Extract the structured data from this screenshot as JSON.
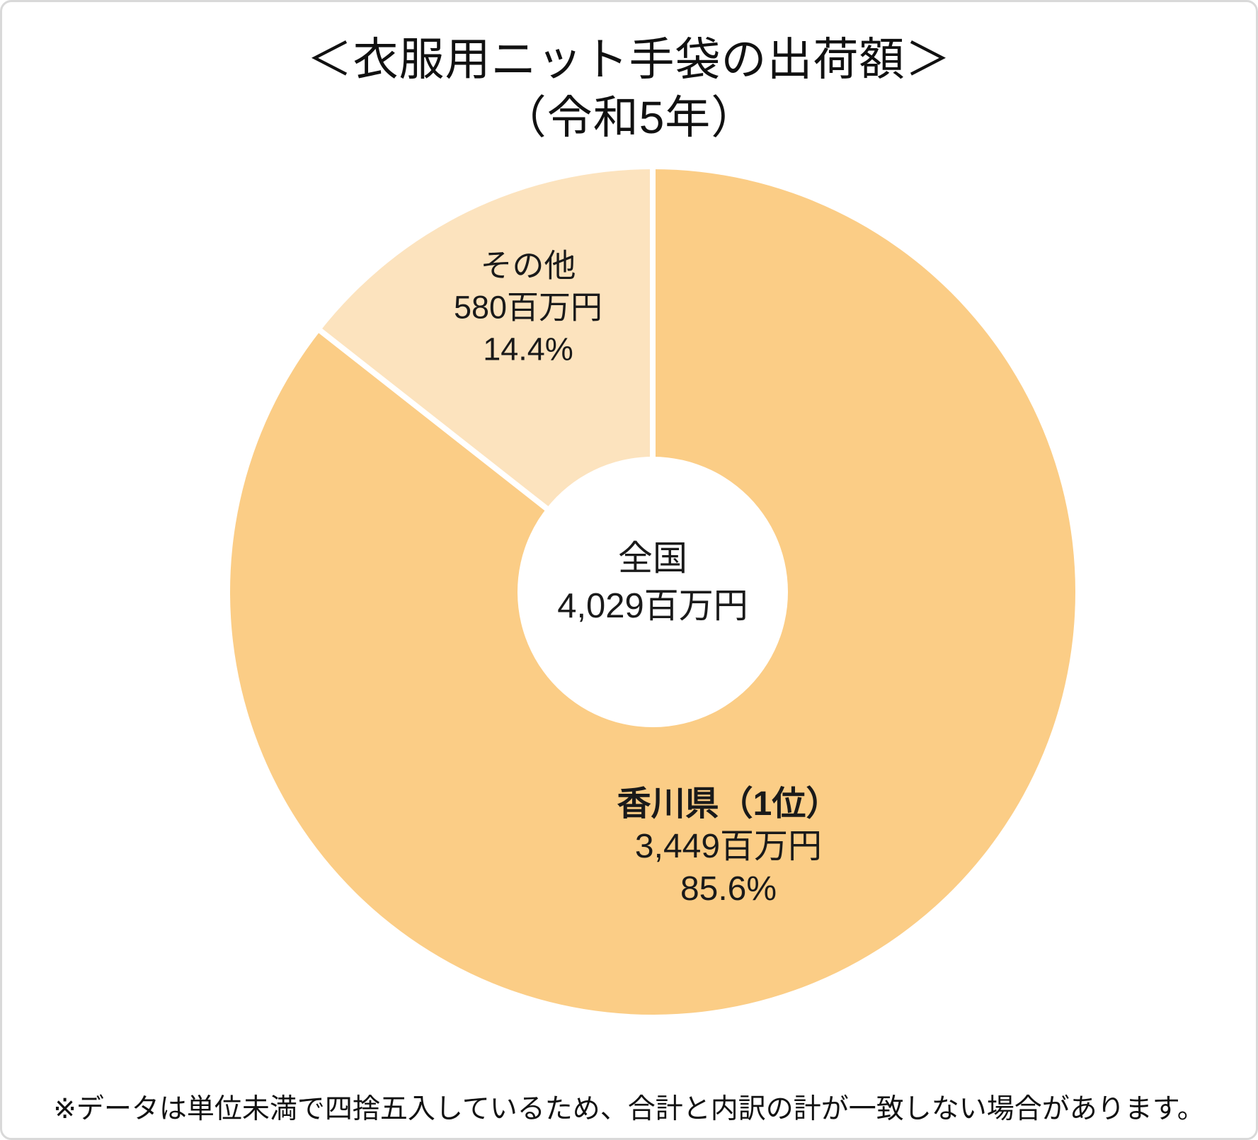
{
  "title": {
    "line1": "＜衣服用ニット手袋の出荷額＞",
    "line2": "（令和5年）"
  },
  "chart_data": {
    "type": "pie",
    "variant": "donut",
    "title": "衣服用ニット手袋の出荷額（令和5年）",
    "unit": "百万円",
    "start_angle_deg": 0,
    "direction": "clockwise",
    "total": {
      "label": "全国",
      "value": 4029,
      "value_label": "4,029百万円"
    },
    "slices": [
      {
        "name": "香川県（1位）",
        "value": 3449,
        "value_label": "3,449百万円",
        "percent": 85.6,
        "percent_label": "85.6%",
        "color": "#FBCD86"
      },
      {
        "name": "その他",
        "value": 580,
        "value_label": "580百万円",
        "percent": 14.4,
        "percent_label": "14.4%",
        "color": "#FCE3BE"
      }
    ],
    "separator_color": "#FFFFFF"
  },
  "footnote": "※データは単位未満で四捨五入しているため、合計と内訳の計が一致しない場合があります。",
  "colors": {
    "card_border": "#D9D9D9",
    "background": "#FFFFFF",
    "text": "#1A1A1A"
  }
}
